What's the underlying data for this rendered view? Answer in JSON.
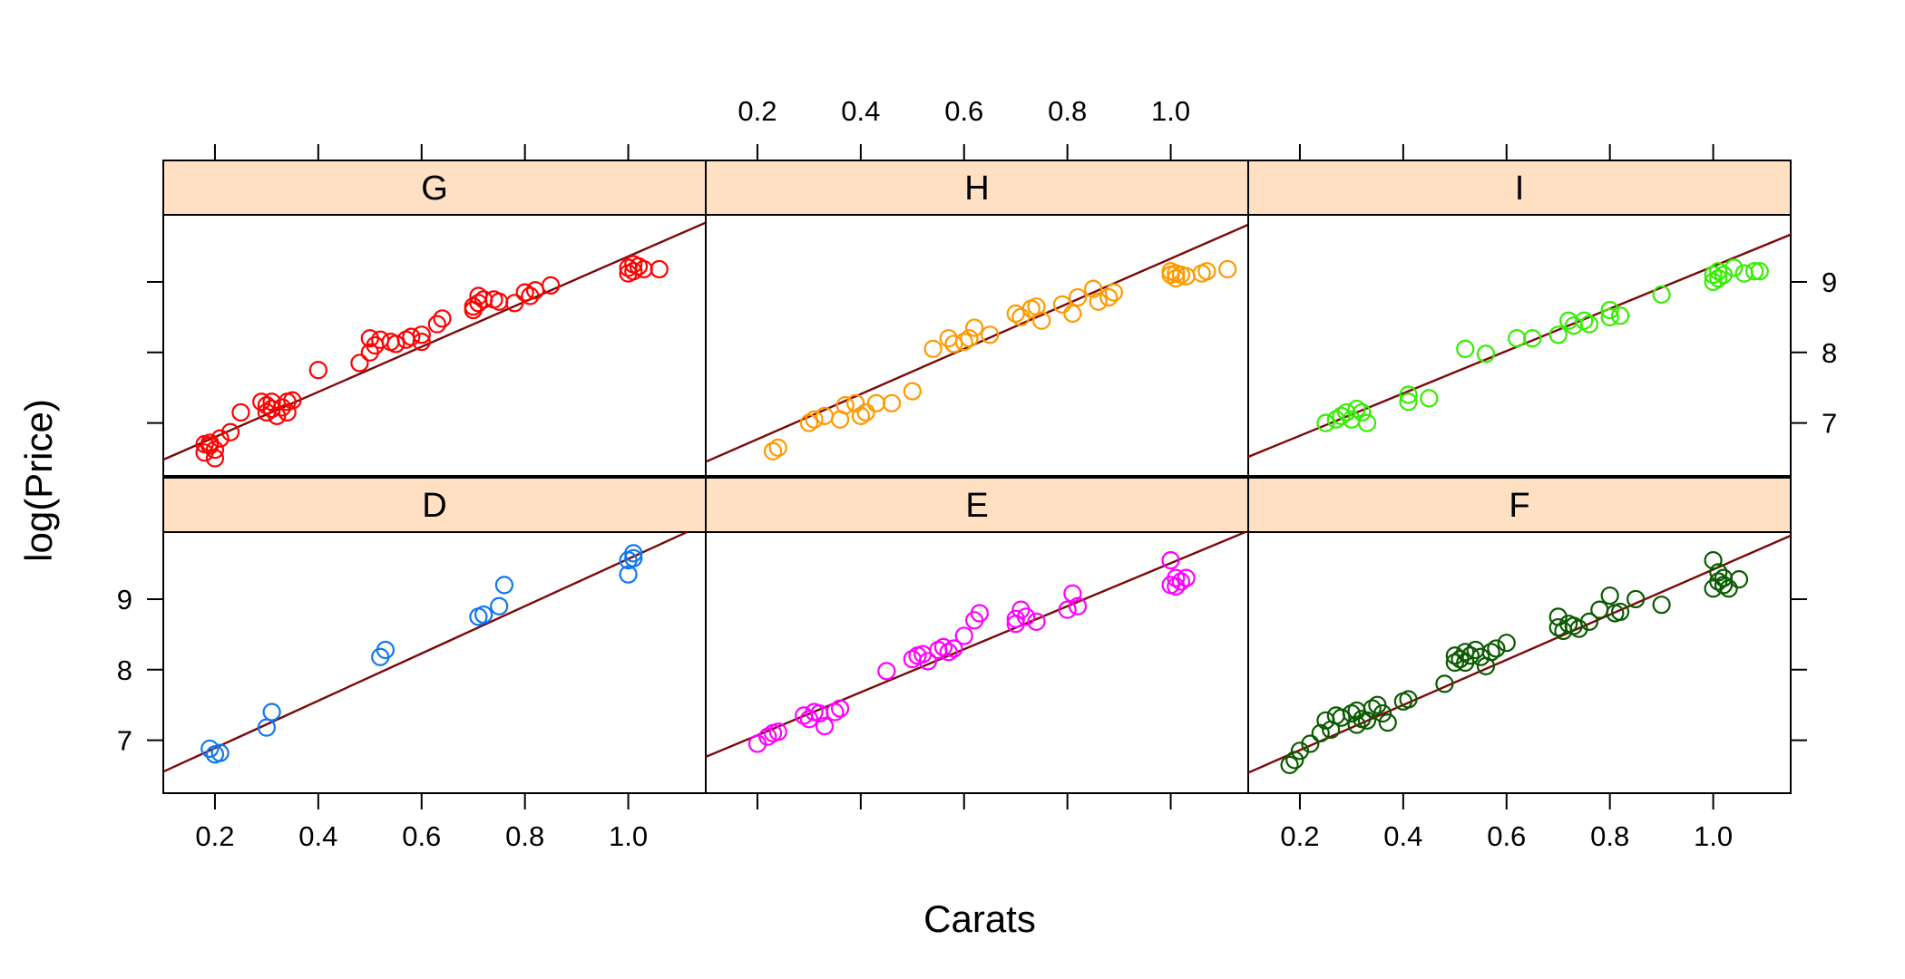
{
  "chart_data": {
    "type": "scatter",
    "layout": {
      "columns": 3,
      "rows": 2
    },
    "xlabel": "Carats",
    "ylabel": "log(Price)",
    "xlim": [
      0.1,
      1.15
    ],
    "ylim": [
      6.25,
      9.95
    ],
    "xticks": [
      0.2,
      0.4,
      0.6,
      0.8,
      1.0
    ],
    "xtick_labels": [
      "0.2",
      "0.4",
      "0.6",
      "0.8",
      "1.0"
    ],
    "yticks": [
      7,
      8,
      9
    ],
    "ytick_labels": [
      "7",
      "8",
      "9"
    ],
    "strip_color": "#ffe0c2",
    "line_color": "#7a0a0a",
    "panels": [
      {
        "label": "G",
        "row": 0,
        "col": 0,
        "color": "#ff0000",
        "fit": {
          "intercept": 6.16,
          "slope": 3.2
        },
        "x": [
          0.18,
          0.18,
          0.19,
          0.19,
          0.2,
          0.2,
          0.21,
          0.23,
          0.25,
          0.29,
          0.3,
          0.3,
          0.31,
          0.31,
          0.32,
          0.33,
          0.34,
          0.34,
          0.35,
          0.4,
          0.48,
          0.5,
          0.5,
          0.51,
          0.52,
          0.54,
          0.55,
          0.57,
          0.58,
          0.6,
          0.6,
          0.63,
          0.64,
          0.7,
          0.7,
          0.71,
          0.71,
          0.72,
          0.74,
          0.75,
          0.78,
          0.8,
          0.81,
          0.82,
          0.85,
          1.0,
          1.0,
          1.01,
          1.01,
          1.02,
          1.03,
          1.06
        ],
        "y": [
          6.58,
          6.7,
          6.72,
          6.68,
          6.5,
          6.62,
          6.78,
          6.87,
          7.15,
          7.3,
          7.25,
          7.15,
          7.3,
          7.2,
          7.1,
          7.22,
          7.3,
          7.15,
          7.32,
          7.75,
          7.85,
          8.0,
          8.2,
          8.1,
          8.18,
          8.15,
          8.12,
          8.18,
          8.22,
          8.25,
          8.15,
          8.4,
          8.48,
          8.6,
          8.65,
          8.7,
          8.8,
          8.75,
          8.75,
          8.72,
          8.7,
          8.85,
          8.8,
          8.88,
          8.95,
          9.2,
          9.12,
          9.25,
          9.15,
          9.22,
          9.18,
          9.18
        ]
      },
      {
        "label": "H",
        "row": 0,
        "col": 1,
        "color": "#ff9900",
        "fit": {
          "intercept": 6.13,
          "slope": 3.2
        },
        "x": [
          0.23,
          0.24,
          0.3,
          0.31,
          0.33,
          0.36,
          0.37,
          0.39,
          0.4,
          0.41,
          0.43,
          0.46,
          0.5,
          0.54,
          0.57,
          0.58,
          0.6,
          0.61,
          0.62,
          0.65,
          0.7,
          0.71,
          0.73,
          0.74,
          0.75,
          0.79,
          0.81,
          0.82,
          0.85,
          0.86,
          0.88,
          0.89,
          1.0,
          1.0,
          1.01,
          1.01,
          1.02,
          1.03,
          1.06,
          1.07,
          1.11
        ],
        "y": [
          6.6,
          6.65,
          7.0,
          7.05,
          7.1,
          7.05,
          7.25,
          7.28,
          7.1,
          7.15,
          7.28,
          7.28,
          7.45,
          8.05,
          8.2,
          8.12,
          8.15,
          8.2,
          8.35,
          8.25,
          8.55,
          8.5,
          8.62,
          8.65,
          8.45,
          8.68,
          8.55,
          8.78,
          8.9,
          8.72,
          8.78,
          8.85,
          9.1,
          9.15,
          9.05,
          9.12,
          9.1,
          9.08,
          9.12,
          9.15,
          9.18
        ]
      },
      {
        "label": "I",
        "row": 0,
        "col": 2,
        "color": "#33ee00",
        "fit": {
          "intercept": 6.22,
          "slope": 3.0
        },
        "x": [
          0.25,
          0.27,
          0.28,
          0.29,
          0.3,
          0.31,
          0.32,
          0.33,
          0.41,
          0.41,
          0.45,
          0.52,
          0.56,
          0.62,
          0.65,
          0.7,
          0.72,
          0.73,
          0.75,
          0.76,
          0.8,
          0.8,
          0.82,
          0.9,
          1.0,
          1.0,
          1.01,
          1.01,
          1.02,
          1.04,
          1.06,
          1.08,
          1.09
        ],
        "y": [
          7.0,
          7.05,
          7.1,
          7.15,
          7.05,
          7.2,
          7.15,
          7.0,
          7.3,
          7.4,
          7.35,
          8.05,
          7.98,
          8.2,
          8.2,
          8.25,
          8.45,
          8.38,
          8.45,
          8.4,
          8.6,
          8.5,
          8.52,
          8.82,
          9.0,
          9.1,
          9.05,
          9.15,
          9.1,
          9.2,
          9.12,
          9.15,
          9.15
        ]
      },
      {
        "label": "D",
        "row": 1,
        "col": 0,
        "color": "#1177ee",
        "fit": {
          "intercept": 6.22,
          "slope": 3.35
        },
        "x": [
          0.19,
          0.2,
          0.21,
          0.3,
          0.31,
          0.52,
          0.53,
          0.71,
          0.72,
          0.75,
          0.76,
          1.0,
          1.0,
          1.01,
          1.01
        ],
        "y": [
          6.88,
          6.8,
          6.82,
          7.18,
          7.4,
          8.18,
          8.28,
          8.75,
          8.78,
          8.9,
          9.2,
          9.35,
          9.55,
          9.65,
          9.58
        ]
      },
      {
        "label": "E",
        "row": 1,
        "col": 1,
        "color": "#ff00ff",
        "fit": {
          "intercept": 6.46,
          "slope": 3.05
        },
        "x": [
          0.2,
          0.22,
          0.23,
          0.24,
          0.29,
          0.3,
          0.31,
          0.32,
          0.33,
          0.35,
          0.36,
          0.45,
          0.5,
          0.51,
          0.52,
          0.53,
          0.55,
          0.56,
          0.57,
          0.58,
          0.6,
          0.62,
          0.63,
          0.7,
          0.7,
          0.71,
          0.72,
          0.74,
          0.8,
          0.81,
          0.82,
          1.0,
          1.0,
          1.01,
          1.01,
          1.02,
          1.03
        ],
        "y": [
          6.95,
          7.05,
          7.1,
          7.12,
          7.35,
          7.3,
          7.4,
          7.38,
          7.2,
          7.4,
          7.45,
          7.98,
          8.15,
          8.2,
          8.22,
          8.12,
          8.28,
          8.32,
          8.25,
          8.3,
          8.48,
          8.7,
          8.8,
          8.65,
          8.72,
          8.85,
          8.75,
          8.68,
          8.85,
          9.08,
          8.9,
          9.55,
          9.2,
          9.3,
          9.18,
          9.25,
          9.3
        ]
      },
      {
        "label": "F",
        "row": 1,
        "col": 2,
        "color": "#0a5a00",
        "fit": {
          "intercept": 6.22,
          "slope": 3.2
        },
        "x": [
          0.18,
          0.19,
          0.2,
          0.22,
          0.24,
          0.25,
          0.26,
          0.27,
          0.28,
          0.3,
          0.31,
          0.31,
          0.32,
          0.33,
          0.34,
          0.35,
          0.36,
          0.37,
          0.4,
          0.41,
          0.48,
          0.5,
          0.5,
          0.51,
          0.52,
          0.52,
          0.53,
          0.54,
          0.55,
          0.56,
          0.57,
          0.58,
          0.6,
          0.7,
          0.7,
          0.71,
          0.72,
          0.73,
          0.74,
          0.76,
          0.78,
          0.8,
          0.81,
          0.82,
          0.85,
          0.9,
          1.0,
          1.0,
          1.01,
          1.01,
          1.02,
          1.02,
          1.03,
          1.05
        ],
        "y": [
          6.65,
          6.72,
          6.85,
          6.95,
          7.1,
          7.28,
          7.15,
          7.35,
          7.32,
          7.38,
          7.22,
          7.42,
          7.3,
          7.28,
          7.45,
          7.5,
          7.38,
          7.25,
          7.55,
          7.58,
          7.8,
          8.2,
          8.1,
          8.15,
          8.25,
          8.1,
          8.2,
          8.28,
          8.18,
          8.05,
          8.25,
          8.3,
          8.38,
          8.75,
          8.6,
          8.55,
          8.65,
          8.62,
          8.58,
          8.68,
          8.85,
          9.05,
          8.8,
          8.82,
          9.0,
          8.92,
          9.15,
          9.55,
          9.25,
          9.38,
          9.2,
          9.3,
          9.15,
          9.28
        ]
      }
    ]
  }
}
